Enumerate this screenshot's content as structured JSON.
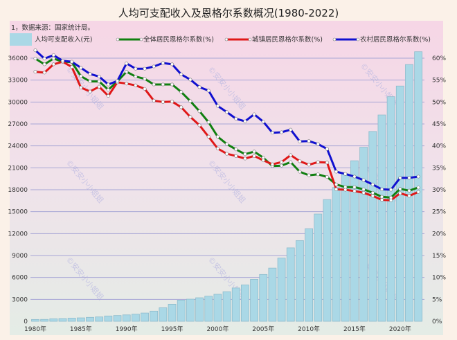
{
  "chart_data": {
    "type": "bar+line",
    "title": "人均可支配收入及恩格尔系数概况(1980-2022)",
    "note": "1，数据来源：国家统计局。",
    "watermark": "©安安小小姐姐",
    "x": [
      1980,
      1981,
      1982,
      1983,
      1984,
      1985,
      1986,
      1987,
      1988,
      1989,
      1990,
      1991,
      1992,
      1993,
      1994,
      1995,
      1996,
      1997,
      1998,
      1999,
      2000,
      2001,
      2002,
      2003,
      2004,
      2005,
      2006,
      2007,
      2008,
      2009,
      2010,
      2011,
      2012,
      2013,
      2014,
      2015,
      2016,
      2017,
      2018,
      2019,
      2020,
      2021,
      2022
    ],
    "x_tick_labels": [
      "1980年",
      "1985年",
      "1990年",
      "1995年",
      "2000年",
      "2005年",
      "2010年",
      "2015年",
      "2020年"
    ],
    "x_tick_years": [
      1980,
      1985,
      1990,
      1995,
      2000,
      2005,
      2010,
      2015,
      2020
    ],
    "y_left": {
      "ylim": [
        0,
        36000
      ],
      "ticks": [
        "0",
        "3000",
        "6000",
        "9000",
        "12000",
        "15000",
        "18000",
        "21000",
        "24000",
        "27000",
        "30000",
        "33000",
        "36000"
      ]
    },
    "y_right": {
      "ylim": [
        0,
        60
      ],
      "ticks": [
        "0%",
        "5%",
        "10%",
        "15%",
        "20%",
        "25%",
        "30%",
        "35%",
        "40%",
        "45%",
        "50%",
        "55%",
        "60%"
      ]
    },
    "grid": true,
    "legend_position": "top",
    "series": [
      {
        "name": "人均可支配收入(元)",
        "kind": "bar",
        "axis": "left",
        "color": "#aad8e6",
        "values": [
          250,
          260,
          350,
          380,
          440,
          470,
          540,
          600,
          730,
          790,
          880,
          980,
          1130,
          1390,
          1860,
          2330,
          2900,
          3030,
          3220,
          3440,
          3700,
          4050,
          4560,
          4980,
          5740,
          6410,
          7280,
          8650,
          10050,
          11040,
          12670,
          14680,
          16660,
          18311,
          20167,
          21966,
          23821,
          25974,
          28228,
          30733,
          32189,
          35128,
          36883
        ]
      },
      {
        "name": "全体居民恩格尔系数(%)",
        "kind": "line",
        "axis": "right",
        "color": "#108010",
        "values": [
          59.9,
          58.6,
          59.9,
          59.2,
          59.1,
          55.9,
          54.7,
          54.7,
          52.8,
          54.7,
          56.9,
          55.8,
          55.3,
          54.0,
          54.0,
          54.0,
          52.3,
          50.2,
          47.9,
          45.4,
          42.1,
          40.4,
          39.2,
          38.1,
          38.7,
          37.3,
          35.4,
          35.5,
          36.3,
          34.1,
          33.3,
          33.5,
          32.9,
          31.2,
          30.6,
          30.6,
          30.1,
          29.3,
          28.4,
          28.2,
          30.2,
          29.8,
          30.5
        ]
      },
      {
        "name": "城镇居民恩格尔系数(%)",
        "kind": "line",
        "axis": "right",
        "color": "#e01818",
        "values": [
          56.9,
          56.7,
          58.6,
          59.2,
          58.0,
          53.3,
          52.4,
          53.5,
          51.4,
          54.5,
          54.2,
          53.8,
          53.0,
          50.3,
          50.0,
          50.1,
          48.8,
          46.6,
          44.7,
          42.1,
          39.4,
          38.2,
          37.7,
          37.1,
          37.7,
          36.7,
          35.8,
          36.3,
          37.9,
          36.5,
          35.7,
          36.3,
          36.2,
          30.1,
          30.0,
          29.7,
          29.3,
          28.6,
          27.7,
          27.6,
          29.2,
          28.6,
          29.5
        ]
      },
      {
        "name": "农村居民恩格尔系数(%)",
        "kind": "line",
        "axis": "right",
        "color": "#1010d0",
        "values": [
          61.8,
          59.9,
          60.7,
          59.4,
          59.2,
          57.8,
          56.4,
          55.8,
          54.0,
          54.8,
          58.8,
          57.6,
          57.6,
          58.1,
          58.9,
          58.6,
          56.3,
          55.1,
          53.4,
          52.6,
          49.1,
          47.7,
          46.2,
          45.6,
          47.2,
          45.5,
          43.0,
          43.1,
          43.7,
          41.0,
          41.1,
          40.4,
          39.3,
          34.1,
          33.6,
          33.0,
          32.2,
          31.2,
          30.1,
          30.0,
          32.7,
          32.7,
          33.0
        ]
      }
    ]
  }
}
